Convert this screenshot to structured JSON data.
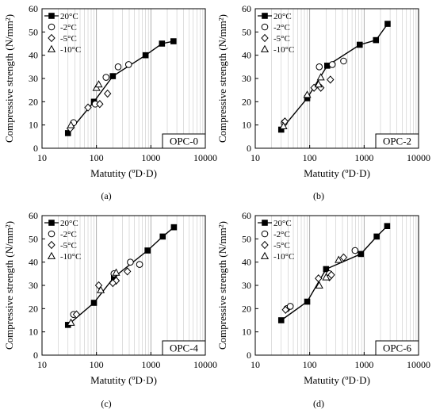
{
  "colors": {
    "line": "#000000",
    "minor_grid": "#c8c8c8",
    "frame": "#000000",
    "background": "#ffffff"
  },
  "chart_data": [
    {
      "panel_label": "(a)",
      "inset_label": "OPC-0",
      "type": "scatter",
      "xlabel": "Matutity (ºD·D)",
      "ylabel": "Compressive strength (N/mm²)",
      "xscale": "log",
      "xlim": [
        10,
        10000
      ],
      "ylim": [
        0,
        60
      ],
      "xticks": [
        10,
        100,
        1000,
        10000
      ],
      "yticks": [
        0,
        10,
        20,
        30,
        40,
        50,
        60
      ],
      "legend_position": "top-left",
      "series": [
        {
          "name": "20°C",
          "marker": "filled-square",
          "points": [
            [
              30,
              6.5
            ],
            [
              90,
              20
            ],
            [
              200,
              31
            ],
            [
              800,
              40
            ],
            [
              1600,
              45
            ],
            [
              2600,
              46
            ]
          ]
        },
        {
          "name": "-2°C",
          "marker": "open-circle",
          "points": [
            [
              38,
              11
            ],
            [
              95,
              19
            ],
            [
              150,
              30.5
            ],
            [
              250,
              35
            ],
            [
              390,
              36
            ]
          ]
        },
        {
          "name": "-5°C",
          "marker": "open-diamond",
          "points": [
            [
              33,
              8.5
            ],
            [
              70,
              17.5
            ],
            [
              115,
              19
            ],
            [
              160,
              23.5
            ]
          ]
        },
        {
          "name": "-10°C",
          "marker": "open-triangle",
          "points": [
            [
              34,
              10
            ],
            [
              100,
              26
            ],
            [
              110,
              27.5
            ]
          ]
        }
      ],
      "fit_curve": [
        [
          30,
          6.5
        ],
        [
          90,
          20
        ],
        [
          200,
          31
        ],
        [
          800,
          40
        ],
        [
          1600,
          45
        ],
        [
          2600,
          46
        ]
      ]
    },
    {
      "panel_label": "(b)",
      "inset_label": "OPC-2",
      "type": "scatter",
      "xlabel": "Matutity (ºD·D)",
      "ylabel": "Compressive strength (N/mm²)",
      "xscale": "log",
      "xlim": [
        10,
        10000
      ],
      "ylim": [
        0,
        60
      ],
      "xticks": [
        10,
        100,
        1000,
        10000
      ],
      "yticks": [
        0,
        10,
        20,
        30,
        40,
        50,
        60
      ],
      "legend_position": "top-left",
      "series": [
        {
          "name": "20°C",
          "marker": "filled-square",
          "points": [
            [
              30,
              8
            ],
            [
              90,
              21.5
            ],
            [
              210,
              35.5
            ],
            [
              830,
              44.5
            ],
            [
              1650,
              46.5
            ],
            [
              2700,
              53.5
            ]
          ]
        },
        {
          "name": "-2°C",
          "marker": "open-circle",
          "points": [
            [
              34,
              11
            ],
            [
              150,
              35
            ],
            [
              260,
              36
            ],
            [
              420,
              37.5
            ]
          ]
        },
        {
          "name": "-5°C",
          "marker": "open-diamond",
          "points": [
            [
              35,
              11.5
            ],
            [
              120,
              26
            ],
            [
              160,
              26
            ],
            [
              240,
              29.5
            ]
          ]
        },
        {
          "name": "-10°C",
          "marker": "open-triangle",
          "points": [
            [
              33,
              9.5
            ],
            [
              90,
              23
            ],
            [
              145,
              27.5
            ],
            [
              160,
              30.5
            ]
          ]
        }
      ],
      "fit_curve": [
        [
          30,
          8
        ],
        [
          90,
          21.5
        ],
        [
          210,
          35.5
        ],
        [
          830,
          44.5
        ],
        [
          1650,
          46.5
        ],
        [
          2700,
          53.5
        ]
      ]
    },
    {
      "panel_label": "(c)",
      "inset_label": "OPC-4",
      "type": "scatter",
      "xlabel": "Matutity (ºD·D)",
      "ylabel": "Compressive strength (N/mm²)",
      "xscale": "log",
      "xlim": [
        10,
        10000
      ],
      "ylim": [
        0,
        60
      ],
      "xticks": [
        10,
        100,
        1000,
        10000
      ],
      "yticks": [
        0,
        10,
        20,
        30,
        40,
        50,
        60
      ],
      "legend_position": "top-left",
      "series": [
        {
          "name": "20°C",
          "marker": "filled-square",
          "points": [
            [
              30,
              13
            ],
            [
              90,
              22.5
            ],
            [
              210,
              33.5
            ],
            [
              870,
              45
            ],
            [
              1650,
              51
            ],
            [
              2650,
              55
            ]
          ]
        },
        {
          "name": "-2°C",
          "marker": "open-circle",
          "points": [
            [
              38,
              17.5
            ],
            [
              210,
              35
            ],
            [
              420,
              40
            ],
            [
              620,
              39
            ]
          ]
        },
        {
          "name": "-5°C",
          "marker": "open-diamond",
          "points": [
            [
              43,
              17.5
            ],
            [
              110,
              30
            ],
            [
              230,
              32
            ],
            [
              370,
              36
            ],
            [
              200,
              31
            ]
          ]
        },
        {
          "name": "-10°C",
          "marker": "open-triangle",
          "points": [
            [
              34,
              14
            ],
            [
              120,
              28
            ],
            [
              230,
              35.5
            ]
          ]
        }
      ],
      "fit_curve": [
        [
          30,
          13
        ],
        [
          90,
          22.5
        ],
        [
          210,
          33.5
        ],
        [
          870,
          45
        ],
        [
          1650,
          51
        ],
        [
          2650,
          55
        ]
      ]
    },
    {
      "panel_label": "(d)",
      "inset_label": "OPC-6",
      "type": "scatter",
      "xlabel": "Matutity (ºD·D)",
      "ylabel": "Compressive strength (N/mm²)",
      "xscale": "log",
      "xlim": [
        10,
        10000
      ],
      "ylim": [
        0,
        60
      ],
      "xticks": [
        10,
        100,
        1000,
        10000
      ],
      "yticks": [
        0,
        10,
        20,
        30,
        40,
        50,
        60
      ],
      "legend_position": "top-left",
      "series": [
        {
          "name": "20°C",
          "marker": "filled-square",
          "points": [
            [
              30,
              15
            ],
            [
              90,
              23
            ],
            [
              200,
              37
            ],
            [
              870,
              43.5
            ],
            [
              1700,
              51
            ],
            [
              2650,
              55.5
            ]
          ]
        },
        {
          "name": "-2°C",
          "marker": "open-circle",
          "points": [
            [
              38,
              20
            ],
            [
              44,
              21
            ],
            [
              230,
              35
            ],
            [
              680,
              45
            ]
          ]
        },
        {
          "name": "-5°C",
          "marker": "open-diamond",
          "points": [
            [
              36,
              19.5
            ],
            [
              145,
              33
            ],
            [
              230,
              33.5
            ],
            [
              250,
              34.5
            ],
            [
              420,
              42
            ]
          ]
        },
        {
          "name": "-10°C",
          "marker": "open-triangle",
          "points": [
            [
              150,
              30
            ],
            [
              200,
              33.5
            ],
            [
              340,
              41
            ]
          ]
        }
      ],
      "fit_curve": [
        [
          30,
          15
        ],
        [
          90,
          23
        ],
        [
          200,
          37
        ],
        [
          870,
          43.5
        ],
        [
          1700,
          51
        ],
        [
          2650,
          55.5
        ]
      ]
    }
  ]
}
